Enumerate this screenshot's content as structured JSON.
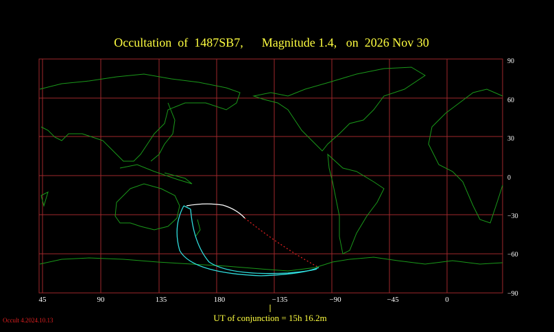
{
  "header": {
    "title": "Occultation  of  1487SB7,      Magnitude 1.4,   on  2026 Nov 30"
  },
  "map": {
    "lon_labels": [
      "45",
      "90",
      "135",
      "180",
      "−135",
      "−90",
      "−45",
      "0"
    ],
    "lat_labels": [
      "90",
      "60",
      "30",
      "0",
      "−30",
      "−60",
      "−90"
    ]
  },
  "footer": {
    "conjunction": "UT of conjunction = 15h 16.2m",
    "version": "Occult 4.2024.10.13"
  }
}
